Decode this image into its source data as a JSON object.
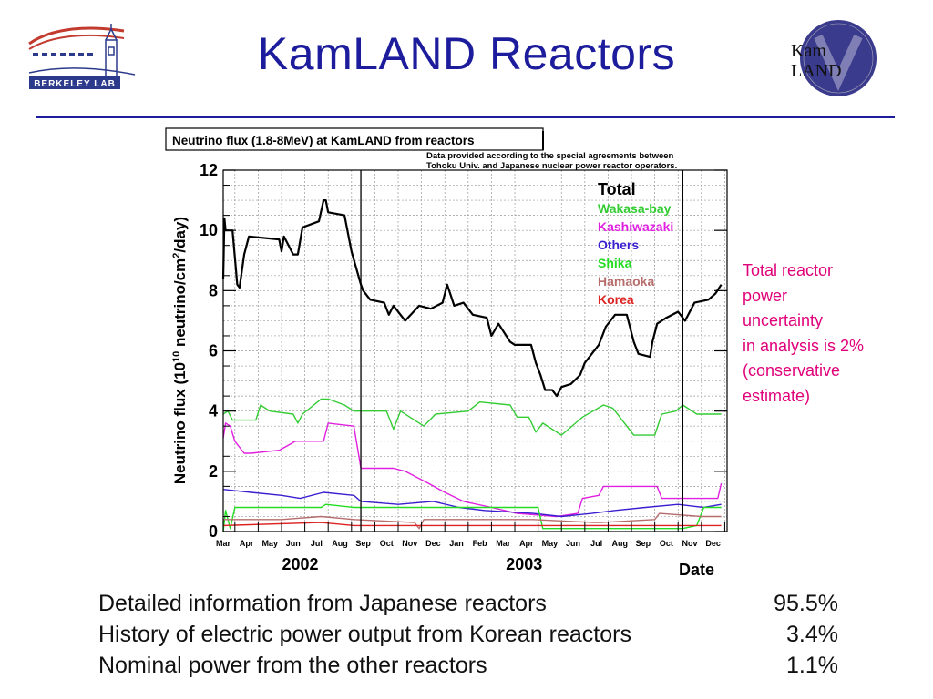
{
  "slide": {
    "title": "KamLAND Reactors"
  },
  "logos": {
    "left_text": "Berkeley Lab",
    "right_text_line1": "Kam",
    "right_text_line2": "LAND"
  },
  "side_note": {
    "lines": [
      "Total reactor",
      "power",
      "uncertainty",
      "in analysis is 2%",
      "(conservative",
      "estimate)"
    ],
    "color": "#e0007a"
  },
  "info_table": [
    {
      "label": "Detailed information from Japanese reactors",
      "value": "95.5%"
    },
    {
      "label": "History of electric power output from Korean reactors",
      "value": "3.4%"
    },
    {
      "label": "Nominal power from the other reactors",
      "value": "1.1%"
    }
  ],
  "chart_data": {
    "type": "line",
    "title": "Neutrino flux (1.8-8MeV) at KamLAND from reactors",
    "note": [
      "Data provided according to the special agreements between",
      "Tohoku Univ. and Japanese nuclear power reactor operators."
    ],
    "ylabel": "Neutrino flux (10^10 neutrino/cm^2/day)",
    "xlabel": "Date",
    "ylim": [
      0,
      12
    ],
    "yticks": [
      0,
      2,
      4,
      6,
      8,
      10,
      12
    ],
    "grid": true,
    "legend_position": "top-right",
    "x_months": [
      "Mar",
      "Apr",
      "May",
      "Jun",
      "Jul",
      "Aug",
      "Sep",
      "Oct",
      "Nov",
      "Dec",
      "Jan",
      "Feb",
      "Mar",
      "Apr",
      "May",
      "Jun",
      "Jul",
      "Aug",
      "Sep",
      "Oct",
      "Nov",
      "Dec"
    ],
    "years": [
      {
        "label": "2002",
        "center": 3.3
      },
      {
        "label": "2003",
        "center": 12.9
      }
    ],
    "vertical_markers": [
      5.9,
      19.7
    ],
    "series": [
      {
        "name": "Total",
        "color": "#000000",
        "width": 2.2,
        "points": [
          [
            0,
            8.4
          ],
          [
            0.05,
            10.4
          ],
          [
            0.1,
            10
          ],
          [
            0.4,
            10
          ],
          [
            0.5,
            9.1
          ],
          [
            0.6,
            8.2
          ],
          [
            0.7,
            8.1
          ],
          [
            0.9,
            9.2
          ],
          [
            1.1,
            9.8
          ],
          [
            2.4,
            9.7
          ],
          [
            2.5,
            9.3
          ],
          [
            2.6,
            9.8
          ],
          [
            3.0,
            9.2
          ],
          [
            3.2,
            9.2
          ],
          [
            3.4,
            10.1
          ],
          [
            4.1,
            10.3
          ],
          [
            4.3,
            11.0
          ],
          [
            4.4,
            11.0
          ],
          [
            4.5,
            10.6
          ],
          [
            5.2,
            10.5
          ],
          [
            5.5,
            9.3
          ],
          [
            5.9,
            8.2
          ],
          [
            6.0,
            8.0
          ],
          [
            6.3,
            7.7
          ],
          [
            6.9,
            7.6
          ],
          [
            7.1,
            7.2
          ],
          [
            7.3,
            7.5
          ],
          [
            7.8,
            7.0
          ],
          [
            8.4,
            7.5
          ],
          [
            8.9,
            7.4
          ],
          [
            9.4,
            7.6
          ],
          [
            9.6,
            8.2
          ],
          [
            9.9,
            7.5
          ],
          [
            10.3,
            7.6
          ],
          [
            10.7,
            7.2
          ],
          [
            11.3,
            7.1
          ],
          [
            11.5,
            6.5
          ],
          [
            11.8,
            6.9
          ],
          [
            12.3,
            6.3
          ],
          [
            12.5,
            6.2
          ],
          [
            13.2,
            6.2
          ],
          [
            13.4,
            5.6
          ],
          [
            13.6,
            5.2
          ],
          [
            13.8,
            4.7
          ],
          [
            14.1,
            4.7
          ],
          [
            14.3,
            4.5
          ],
          [
            14.5,
            4.8
          ],
          [
            14.9,
            4.9
          ],
          [
            15.3,
            5.2
          ],
          [
            15.5,
            5.6
          ],
          [
            16.1,
            6.2
          ],
          [
            16.4,
            6.8
          ],
          [
            16.8,
            7.2
          ],
          [
            17.3,
            7.2
          ],
          [
            17.6,
            6.3
          ],
          [
            17.8,
            5.9
          ],
          [
            18.3,
            5.8
          ],
          [
            18.4,
            6.3
          ],
          [
            18.6,
            6.9
          ],
          [
            19.0,
            7.1
          ],
          [
            19.5,
            7.3
          ],
          [
            19.8,
            7.0
          ],
          [
            20.2,
            7.6
          ],
          [
            20.8,
            7.7
          ],
          [
            21.1,
            7.9
          ],
          [
            21.35,
            8.2
          ]
        ]
      },
      {
        "name": "Wakasa-bay",
        "color": "#33cc33",
        "width": 1.4,
        "points": [
          [
            0,
            3.9
          ],
          [
            0.2,
            4.0
          ],
          [
            0.4,
            3.7
          ],
          [
            1.4,
            3.7
          ],
          [
            1.6,
            4.2
          ],
          [
            2.0,
            4.0
          ],
          [
            3.0,
            3.9
          ],
          [
            3.2,
            3.6
          ],
          [
            3.4,
            3.9
          ],
          [
            4.2,
            4.4
          ],
          [
            4.5,
            4.4
          ],
          [
            5.2,
            4.2
          ],
          [
            5.6,
            4.0
          ],
          [
            7.0,
            4.0
          ],
          [
            7.3,
            3.4
          ],
          [
            7.6,
            4.0
          ],
          [
            8.6,
            3.5
          ],
          [
            9.1,
            3.9
          ],
          [
            10.5,
            4.0
          ],
          [
            11.0,
            4.3
          ],
          [
            12.3,
            4.2
          ],
          [
            12.6,
            3.8
          ],
          [
            13.1,
            3.8
          ],
          [
            13.4,
            3.3
          ],
          [
            13.7,
            3.6
          ],
          [
            14.5,
            3.2
          ],
          [
            15.4,
            3.8
          ],
          [
            16.3,
            4.2
          ],
          [
            16.7,
            4.1
          ],
          [
            17.6,
            3.2
          ],
          [
            18.5,
            3.2
          ],
          [
            18.8,
            3.9
          ],
          [
            19.4,
            4.0
          ],
          [
            19.7,
            4.2
          ],
          [
            20.3,
            3.9
          ],
          [
            21.35,
            3.9
          ]
        ]
      },
      {
        "name": "Kashiwazaki",
        "color": "#e020e0",
        "width": 1.4,
        "points": [
          [
            0,
            3.1
          ],
          [
            0.1,
            3.6
          ],
          [
            0.3,
            3.5
          ],
          [
            0.5,
            3.0
          ],
          [
            0.9,
            2.6
          ],
          [
            1.2,
            2.6
          ],
          [
            2.4,
            2.7
          ],
          [
            3.1,
            3.0
          ],
          [
            4.3,
            3.0
          ],
          [
            4.5,
            3.6
          ],
          [
            5.6,
            3.5
          ],
          [
            5.9,
            2.1
          ],
          [
            7.3,
            2.1
          ],
          [
            7.8,
            2.0
          ],
          [
            8.8,
            1.6
          ],
          [
            9.5,
            1.3
          ],
          [
            10.3,
            1.0
          ],
          [
            11.5,
            0.8
          ],
          [
            12.6,
            0.6
          ],
          [
            14.3,
            0.5
          ],
          [
            15.2,
            0.6
          ],
          [
            15.4,
            1.1
          ],
          [
            16.1,
            1.2
          ],
          [
            16.3,
            1.5
          ],
          [
            18.6,
            1.5
          ],
          [
            18.8,
            1.1
          ],
          [
            21.2,
            1.1
          ],
          [
            21.35,
            1.6
          ]
        ]
      },
      {
        "name": "Others",
        "color": "#3a1fd0",
        "width": 1.4,
        "points": [
          [
            0,
            1.4
          ],
          [
            1.2,
            1.3
          ],
          [
            2.5,
            1.2
          ],
          [
            3.3,
            1.1
          ],
          [
            4.3,
            1.3
          ],
          [
            5.6,
            1.2
          ],
          [
            5.9,
            1.0
          ],
          [
            7.5,
            0.9
          ],
          [
            9.0,
            1.0
          ],
          [
            10.1,
            0.8
          ],
          [
            11.2,
            0.7
          ],
          [
            13.3,
            0.6
          ],
          [
            14.5,
            0.5
          ],
          [
            15.8,
            0.6
          ],
          [
            16.8,
            0.7
          ],
          [
            18.1,
            0.8
          ],
          [
            19.5,
            0.9
          ],
          [
            20.6,
            0.8
          ],
          [
            21.35,
            0.9
          ]
        ]
      },
      {
        "name": "Shika",
        "color": "#22dd22",
        "width": 1.4,
        "points": [
          [
            0,
            0
          ],
          [
            0.1,
            0.7
          ],
          [
            0.3,
            0.1
          ],
          [
            0.5,
            0.8
          ],
          [
            4.2,
            0.8
          ],
          [
            4.4,
            0.9
          ],
          [
            5.6,
            0.8
          ],
          [
            5.9,
            0.8
          ],
          [
            13.5,
            0.8
          ],
          [
            13.7,
            0.1
          ],
          [
            19.7,
            0.1
          ],
          [
            20.3,
            0.2
          ],
          [
            20.6,
            0.8
          ],
          [
            21.35,
            0.8
          ]
        ]
      },
      {
        "name": "Hamaoka",
        "color": "#b86d6d",
        "width": 1.4,
        "points": [
          [
            0,
            0.4
          ],
          [
            1.2,
            0.4
          ],
          [
            2.5,
            0.4
          ],
          [
            4.2,
            0.5
          ],
          [
            5.6,
            0.4
          ],
          [
            8.2,
            0.3
          ],
          [
            8.4,
            0.1
          ],
          [
            8.6,
            0.4
          ],
          [
            13.3,
            0.4
          ],
          [
            15.9,
            0.3
          ],
          [
            16.2,
            0.3
          ],
          [
            18.5,
            0.4
          ],
          [
            18.7,
            0.6
          ],
          [
            20.5,
            0.5
          ],
          [
            21.35,
            0.5
          ]
        ]
      },
      {
        "name": "Korea",
        "color": "#dd2222",
        "width": 1.4,
        "points": [
          [
            0,
            0.2
          ],
          [
            4.2,
            0.3
          ],
          [
            5.6,
            0.2
          ],
          [
            9.6,
            0.2
          ],
          [
            14.0,
            0.2
          ],
          [
            21.35,
            0.2
          ]
        ]
      }
    ]
  }
}
